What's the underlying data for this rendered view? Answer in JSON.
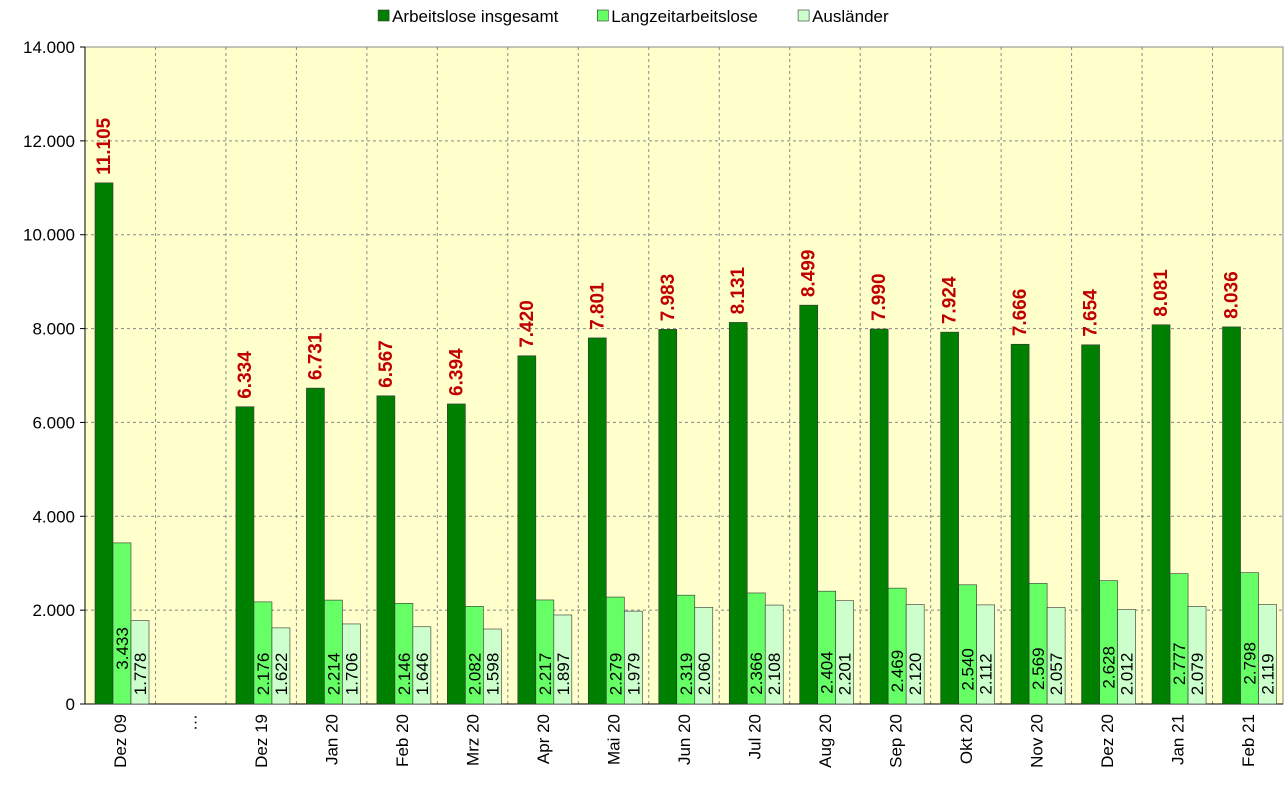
{
  "chart_data": {
    "type": "bar",
    "categories": [
      "Dez 09",
      "…",
      "Dez 19",
      "Jan 20",
      "Feb 20",
      "Mrz 20",
      "Apr 20",
      "Mai 20",
      "Jun 20",
      "Jul 20",
      "Aug 20",
      "Sep 20",
      "Okt 20",
      "Nov 20",
      "Dez 20",
      "Jan 21",
      "Feb 21"
    ],
    "series": [
      {
        "name": "Arbeitslose insgesamt",
        "color": "#008000",
        "values": [
          11105,
          null,
          6334,
          6731,
          6567,
          6394,
          7420,
          7801,
          7983,
          8131,
          8499,
          7990,
          7924,
          7666,
          7654,
          8081,
          8036
        ],
        "value_labels": [
          "11.105",
          null,
          "6.334",
          "6.731",
          "6.567",
          "6.394",
          "7.420",
          "7.801",
          "7.983",
          "8.131",
          "8.499",
          "7.990",
          "7.924",
          "7.666",
          "7.654",
          "8.081",
          "8.036"
        ]
      },
      {
        "name": "Langzeitarbeitslose",
        "color": "#66ff66",
        "values": [
          3433,
          null,
          2176,
          2214,
          2146,
          2082,
          2217,
          2279,
          2319,
          2366,
          2404,
          2469,
          2540,
          2569,
          2628,
          2777,
          2798
        ],
        "value_labels": [
          "3.433",
          null,
          "2.176",
          "2.214",
          "2.146",
          "2.082",
          "2.217",
          "2.279",
          "2.319",
          "2.366",
          "2.404",
          "2.469",
          "2.540",
          "2.569",
          "2.628",
          "2.777",
          "2.798"
        ]
      },
      {
        "name": "Ausländer",
        "color": "#ccffcc",
        "values": [
          1778,
          null,
          1622,
          1706,
          1646,
          1598,
          1897,
          1979,
          2060,
          2108,
          2201,
          2120,
          2112,
          2057,
          2012,
          2079,
          2119
        ],
        "value_labels": [
          "1.778",
          null,
          "1.622",
          "1.706",
          "1.646",
          "1.598",
          "1.897",
          "1.979",
          "2.060",
          "2.108",
          "2.201",
          "2.120",
          "2.112",
          "2.057",
          "2.012",
          "2.079",
          "2.119"
        ]
      }
    ],
    "ylim": [
      0,
      14000
    ],
    "yticks": [
      0,
      {
        "value": 2000,
        "label": "2.000"
      },
      {
        "value": 4000,
        "label": "4.000"
      },
      {
        "value": 6000,
        "label": "6.000"
      },
      {
        "value": 8000,
        "label": "8.000"
      },
      {
        "value": 10000,
        "label": "10.000"
      },
      {
        "value": 12000,
        "label": "12.000"
      },
      {
        "value": 14000,
        "label": "14.000"
      }
    ],
    "grid": true,
    "legend": "top",
    "plot_background": "#ffffcc"
  }
}
